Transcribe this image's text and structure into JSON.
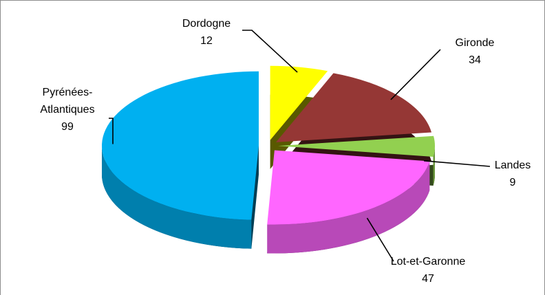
{
  "chart_data": {
    "type": "pie",
    "categories": [
      "Dordogne",
      "Gironde",
      "Landes",
      "Lot-et-Garonne",
      "Pyrénées-Atlantiques"
    ],
    "values": [
      12,
      34,
      9,
      47,
      99
    ],
    "colors": [
      "#ffff00",
      "#953735",
      "#92d050",
      "#ff66ff",
      "#00b0f0"
    ],
    "three_d": true,
    "exploded": true
  }
}
